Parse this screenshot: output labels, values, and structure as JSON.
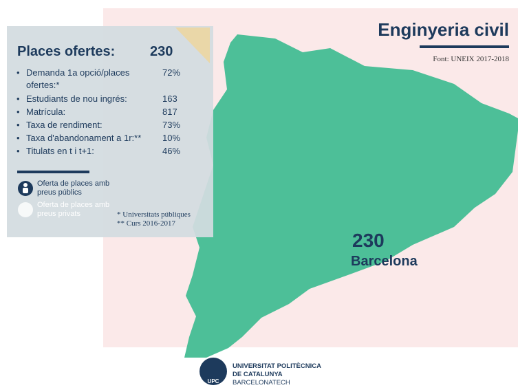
{
  "header": {
    "title": "Enginyeria civil",
    "source": "Font: UNEIX 2017-2018"
  },
  "panel": {
    "heading": "Places ofertes:",
    "heading_value": "230",
    "items": [
      {
        "label": "Demanda 1a opció/places ofertes:*",
        "value": "72%"
      },
      {
        "label": "Estudiants de nou ingrés:",
        "value": "163"
      },
      {
        "label": "Matrícula:",
        "value": "817"
      },
      {
        "label": "Taxa de rendiment:",
        "value": "73%"
      },
      {
        "label": "Taxa d'abandonament a 1r:**",
        "value": "10%"
      },
      {
        "label": "Titulats en t i t+1:",
        "value": "46%"
      }
    ],
    "legend": [
      "Oferta de places amb preus públics",
      "Oferta de places amb preus privats"
    ],
    "notes": [
      "* Universitats públiques",
      "** Curs 2016-2017"
    ]
  },
  "map": {
    "value": "230",
    "city": "Barcelona"
  },
  "footer": {
    "logo": "UPC",
    "lines": [
      "UNIVERSITAT POLITÈCNICA",
      "DE CATALUNYA",
      "BARCELONATECH"
    ]
  }
}
